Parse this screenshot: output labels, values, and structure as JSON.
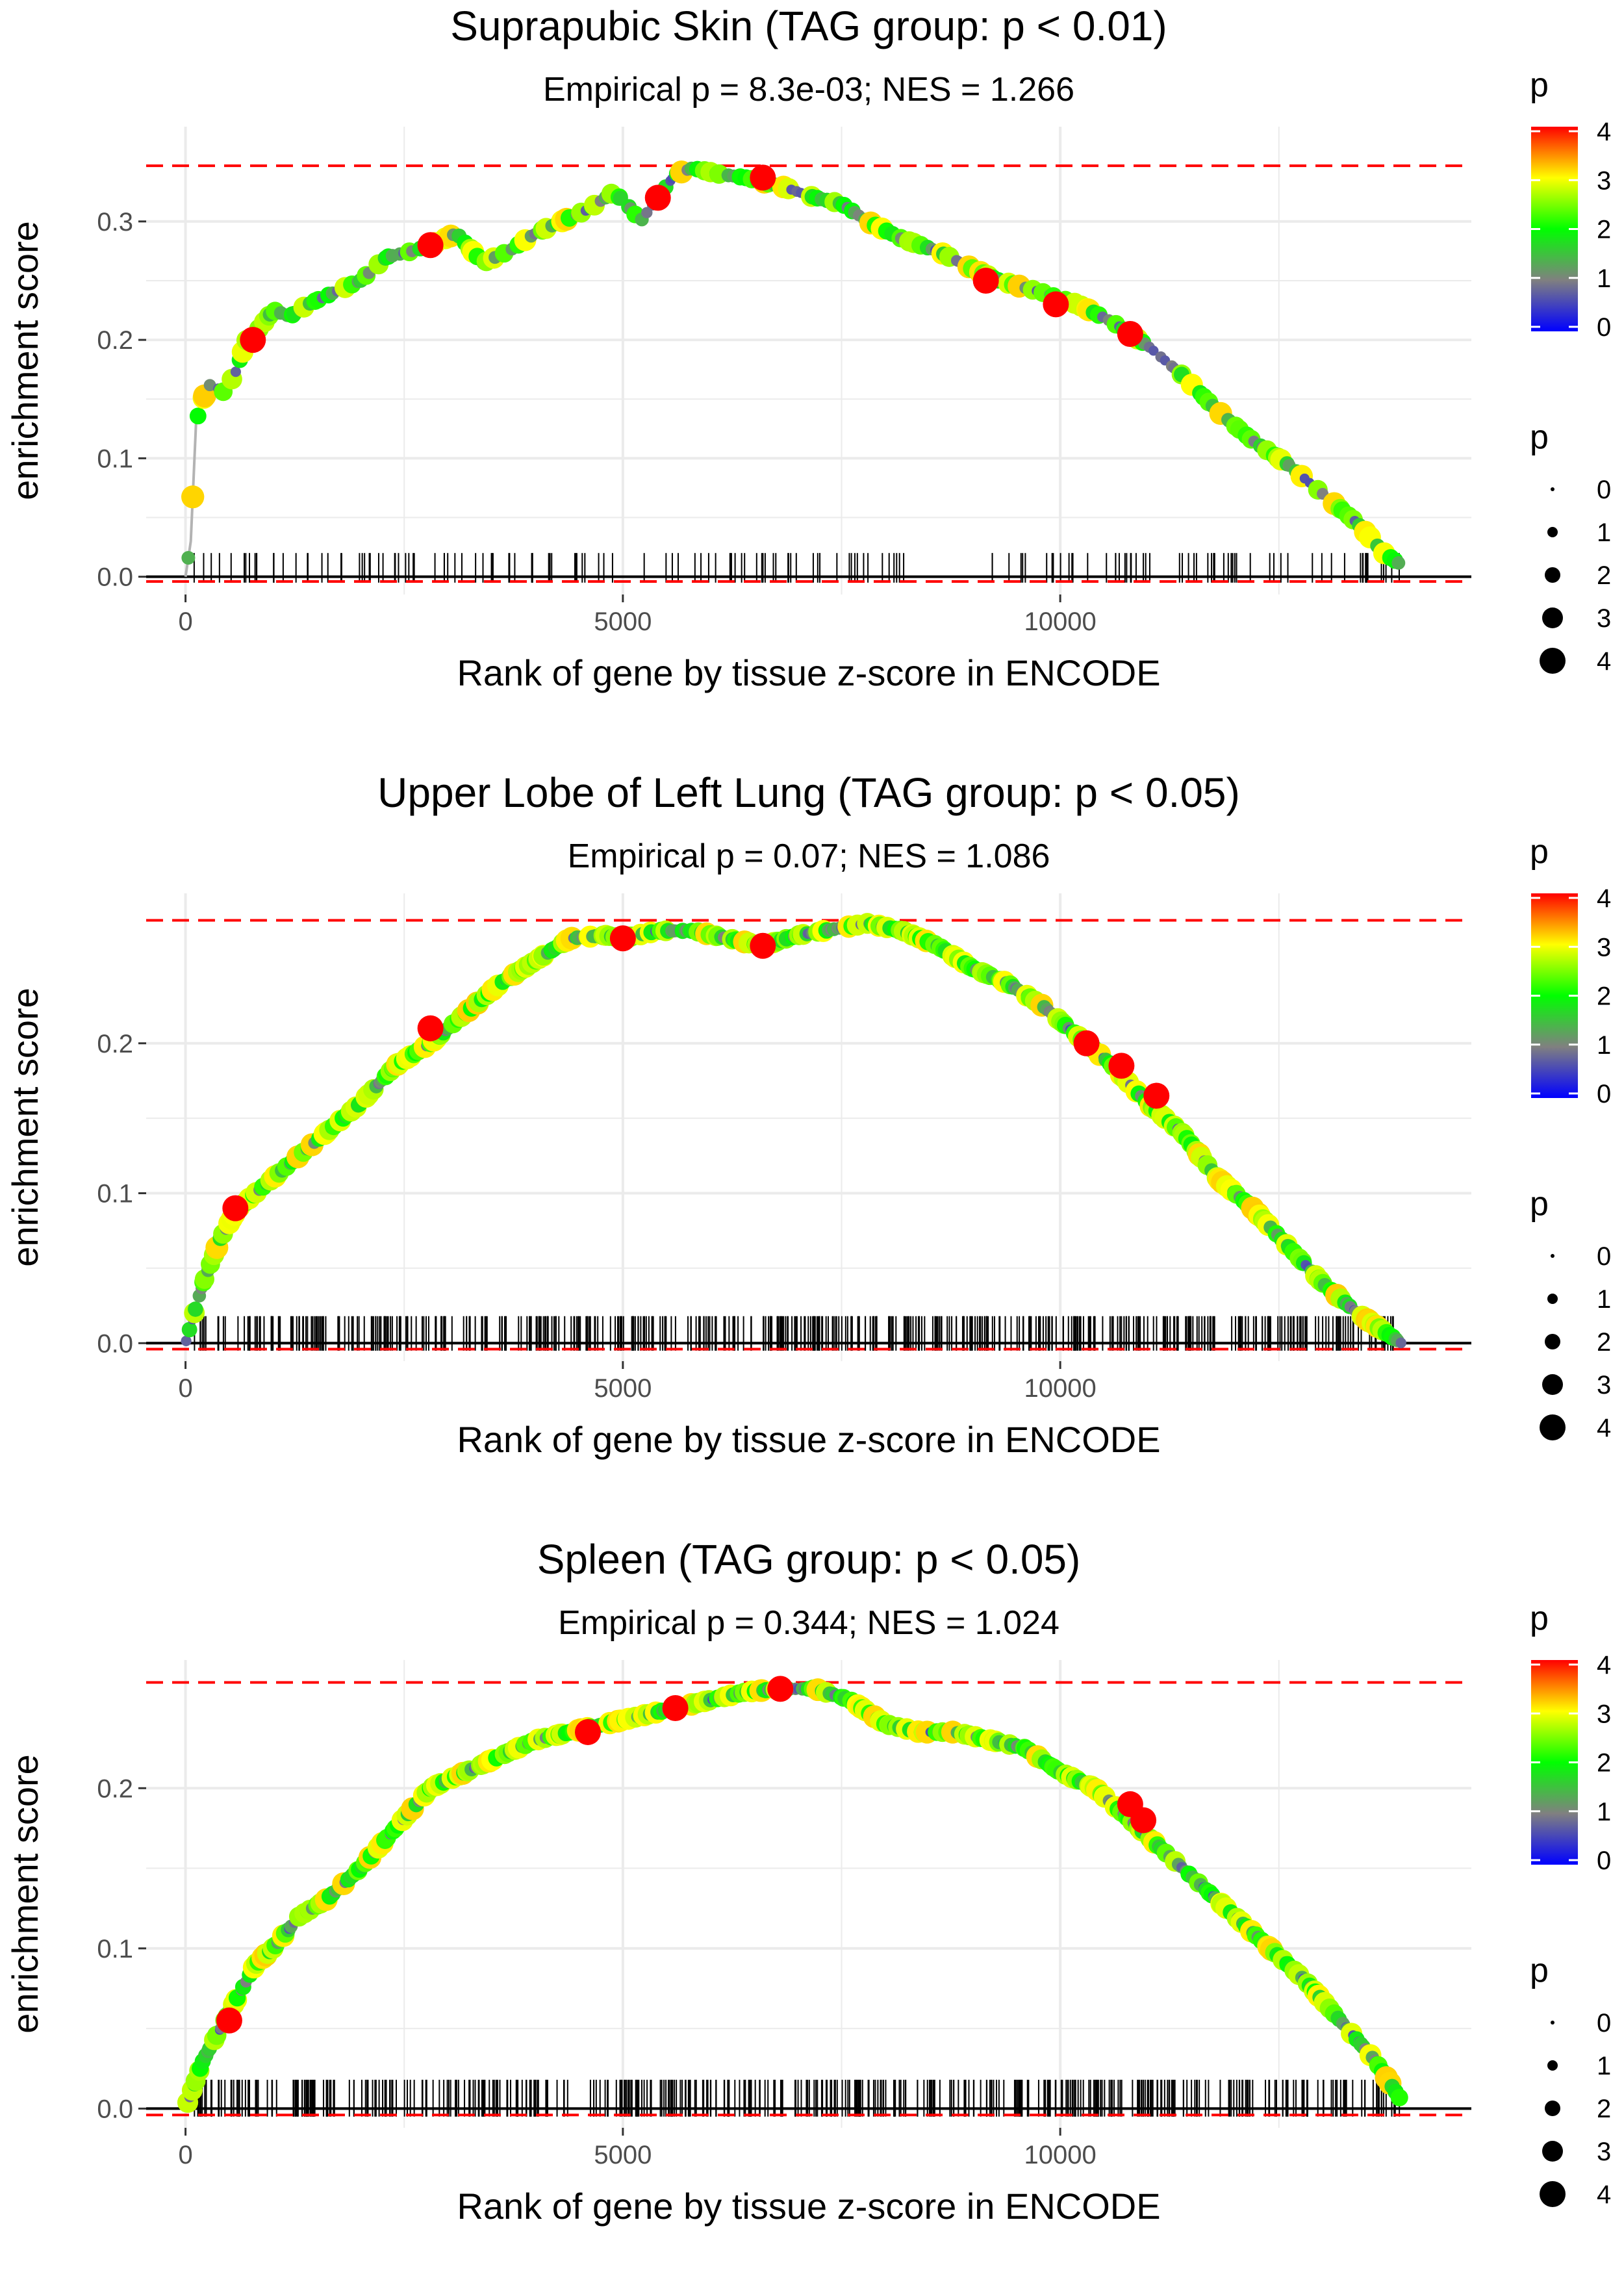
{
  "figure": {
    "legend_color_colors": [
      "#0000ff",
      "#808080",
      "#00ff00",
      "#ffff00",
      "#ff0000"
    ],
    "curve_color": "#b3b3b3",
    "threshold_color": "#ff0000",
    "grid_color": "#ebebeb",
    "hit_color": "#000000"
  },
  "chart_data": [
    {
      "type": "line",
      "title": "Suprapubic Skin (TAG group: p < 0.01)",
      "subtitle": "Empirical p = 8.3e-03; NES = 1.266",
      "xlabel": "Rank of gene by tissue z-score in ENCODE",
      "ylabel": "enrichment score",
      "xlim": [
        -450,
        14700
      ],
      "ylim": [
        -0.015,
        0.38
      ],
      "x_ticks": [
        0,
        5000,
        10000
      ],
      "x_tick_labels": [
        "0",
        "5000",
        "10000"
      ],
      "y_ticks": [
        0.0,
        0.1,
        0.2,
        0.3
      ],
      "y_tick_labels": [
        "0.0",
        "0.1",
        "0.2",
        "0.3"
      ],
      "threshold_lines": [
        0.347,
        -0.004
      ],
      "hit_band": [
        -0.005,
        0.02
      ],
      "hit_density": 170,
      "hit_blocks": [
        [
          80,
          4900
        ],
        [
          5200,
          8300
        ],
        [
          9100,
          13900
        ]
      ],
      "curve": [
        [
          0,
          0
        ],
        [
          60,
          0.03
        ],
        [
          120,
          0.13
        ],
        [
          200,
          0.15
        ],
        [
          300,
          0.165
        ],
        [
          420,
          0.155
        ],
        [
          560,
          0.17
        ],
        [
          700,
          0.2
        ],
        [
          850,
          0.21
        ],
        [
          1000,
          0.225
        ],
        [
          1200,
          0.22
        ],
        [
          1400,
          0.23
        ],
        [
          1700,
          0.24
        ],
        [
          2000,
          0.25
        ],
        [
          2300,
          0.27
        ],
        [
          2600,
          0.275
        ],
        [
          2800,
          0.28
        ],
        [
          3100,
          0.29
        ],
        [
          3400,
          0.265
        ],
        [
          3700,
          0.275
        ],
        [
          4000,
          0.29
        ],
        [
          4300,
          0.3
        ],
        [
          4600,
          0.31
        ],
        [
          4900,
          0.325
        ],
        [
          5100,
          0.31
        ],
        [
          5200,
          0.3
        ],
        [
          5400,
          0.32
        ],
        [
          5600,
          0.34
        ],
        [
          5800,
          0.345
        ],
        [
          6100,
          0.34
        ],
        [
          6400,
          0.337
        ],
        [
          6800,
          0.33
        ],
        [
          7200,
          0.32
        ],
        [
          7500,
          0.315
        ],
        [
          7800,
          0.3
        ],
        [
          8200,
          0.285
        ],
        [
          8600,
          0.275
        ],
        [
          9000,
          0.26
        ],
        [
          9300,
          0.25
        ],
        [
          9800,
          0.24
        ],
        [
          10200,
          0.23
        ],
        [
          10600,
          0.215
        ],
        [
          11000,
          0.195
        ],
        [
          11400,
          0.17
        ],
        [
          11800,
          0.14
        ],
        [
          12200,
          0.115
        ],
        [
          12600,
          0.095
        ],
        [
          13000,
          0.07
        ],
        [
          13400,
          0.045
        ],
        [
          13700,
          0.02
        ],
        [
          13900,
          0.01
        ]
      ],
      "large_points": [
        [
          770,
          0.2
        ],
        [
          2800,
          0.28
        ],
        [
          5400,
          0.32
        ],
        [
          6600,
          0.337
        ],
        [
          9150,
          0.25
        ],
        [
          9950,
          0.23
        ],
        [
          10800,
          0.205
        ]
      ],
      "legend": {
        "color_title": "p",
        "color_ticks": [
          "4",
          "3",
          "2",
          "1",
          "0"
        ],
        "size_title": "p",
        "size_labels": [
          "0",
          "1",
          "2",
          "3",
          "4"
        ]
      }
    },
    {
      "type": "line",
      "title": "Upper Lobe of Left Lung (TAG group: p < 0.05)",
      "subtitle": "Empirical p = 0.07; NES = 1.086",
      "xlabel": "Rank of gene by tissue z-score in ENCODE",
      "ylabel": "enrichment score",
      "xlim": [
        -450,
        14700
      ],
      "ylim": [
        -0.012,
        0.3
      ],
      "x_ticks": [
        0,
        5000,
        10000
      ],
      "x_tick_labels": [
        "0",
        "5000",
        "10000"
      ],
      "y_ticks": [
        0.0,
        0.1,
        0.2
      ],
      "y_tick_labels": [
        "0.0",
        "0.1",
        "0.2"
      ],
      "threshold_lines": [
        0.282,
        -0.004
      ],
      "hit_band": [
        -0.005,
        0.018
      ],
      "hit_density": 520,
      "hit_blocks": [
        [
          80,
          13900
        ]
      ],
      "curve": [
        [
          0,
          0
        ],
        [
          200,
          0.04
        ],
        [
          400,
          0.07
        ],
        [
          600,
          0.09
        ],
        [
          800,
          0.1
        ],
        [
          1000,
          0.11
        ],
        [
          1300,
          0.125
        ],
        [
          1600,
          0.14
        ],
        [
          2000,
          0.16
        ],
        [
          2400,
          0.185
        ],
        [
          2800,
          0.2
        ],
        [
          3200,
          0.22
        ],
        [
          3600,
          0.24
        ],
        [
          4000,
          0.255
        ],
        [
          4400,
          0.27
        ],
        [
          4800,
          0.272
        ],
        [
          5000,
          0.27
        ],
        [
          5400,
          0.275
        ],
        [
          5800,
          0.275
        ],
        [
          6200,
          0.27
        ],
        [
          6600,
          0.265
        ],
        [
          7000,
          0.272
        ],
        [
          7400,
          0.276
        ],
        [
          7800,
          0.28
        ],
        [
          8200,
          0.275
        ],
        [
          8600,
          0.265
        ],
        [
          9000,
          0.25
        ],
        [
          9400,
          0.24
        ],
        [
          9800,
          0.225
        ],
        [
          10200,
          0.205
        ],
        [
          10600,
          0.185
        ],
        [
          11000,
          0.16
        ],
        [
          11400,
          0.14
        ],
        [
          11800,
          0.11
        ],
        [
          12200,
          0.09
        ],
        [
          12600,
          0.065
        ],
        [
          13000,
          0.04
        ],
        [
          13400,
          0.02
        ],
        [
          13700,
          0.008
        ],
        [
          13900,
          0.0
        ]
      ],
      "large_points": [
        [
          570,
          0.09
        ],
        [
          2800,
          0.21
        ],
        [
          5000,
          0.27
        ],
        [
          6600,
          0.265
        ],
        [
          10300,
          0.2
        ],
        [
          10700,
          0.185
        ],
        [
          11100,
          0.165
        ]
      ],
      "legend": {
        "color_title": "p",
        "color_ticks": [
          "4",
          "3",
          "2",
          "1",
          "0"
        ],
        "size_title": "p",
        "size_labels": [
          "0",
          "1",
          "2",
          "3",
          "4"
        ]
      }
    },
    {
      "type": "line",
      "title": "Spleen (TAG group: p < 0.05)",
      "subtitle": "Empirical p = 0.344; NES = 1.024",
      "xlabel": "Rank of gene by tissue z-score in ENCODE",
      "ylabel": "enrichment score",
      "xlim": [
        -450,
        14700
      ],
      "ylim": [
        -0.012,
        0.28
      ],
      "x_ticks": [
        0,
        5000,
        10000
      ],
      "x_tick_labels": [
        "0",
        "5000",
        "10000"
      ],
      "y_ticks": [
        0.0,
        0.1,
        0.2
      ],
      "y_tick_labels": [
        "0.0",
        "0.1",
        "0.2"
      ],
      "threshold_lines": [
        0.266,
        -0.004
      ],
      "hit_band": [
        -0.005,
        0.018
      ],
      "hit_density": 480,
      "hit_blocks": [
        [
          80,
          13900
        ]
      ],
      "curve": [
        [
          0,
          0
        ],
        [
          200,
          0.03
        ],
        [
          400,
          0.05
        ],
        [
          600,
          0.07
        ],
        [
          800,
          0.09
        ],
        [
          1000,
          0.1
        ],
        [
          1300,
          0.12
        ],
        [
          1600,
          0.13
        ],
        [
          2000,
          0.15
        ],
        [
          2400,
          0.175
        ],
        [
          2800,
          0.2
        ],
        [
          3200,
          0.21
        ],
        [
          3600,
          0.22
        ],
        [
          4000,
          0.23
        ],
        [
          4400,
          0.235
        ],
        [
          4800,
          0.24
        ],
        [
          5200,
          0.245
        ],
        [
          5600,
          0.25
        ],
        [
          6000,
          0.255
        ],
        [
          6400,
          0.26
        ],
        [
          6800,
          0.262
        ],
        [
          7200,
          0.262
        ],
        [
          7600,
          0.255
        ],
        [
          8000,
          0.24
        ],
        [
          8400,
          0.235
        ],
        [
          8800,
          0.235
        ],
        [
          9200,
          0.23
        ],
        [
          9600,
          0.225
        ],
        [
          10000,
          0.21
        ],
        [
          10400,
          0.2
        ],
        [
          10800,
          0.18
        ],
        [
          11200,
          0.16
        ],
        [
          11600,
          0.14
        ],
        [
          12000,
          0.12
        ],
        [
          12400,
          0.1
        ],
        [
          12800,
          0.08
        ],
        [
          13200,
          0.055
        ],
        [
          13600,
          0.03
        ],
        [
          13900,
          0.005
        ]
      ],
      "large_points": [
        [
          500,
          0.055
        ],
        [
          4600,
          0.235
        ],
        [
          5600,
          0.25
        ],
        [
          6800,
          0.262
        ],
        [
          10800,
          0.19
        ],
        [
          10950,
          0.18
        ]
      ],
      "legend": {
        "color_title": "p",
        "color_ticks": [
          "4",
          "3",
          "2",
          "1",
          "0"
        ],
        "size_title": "p",
        "size_labels": [
          "0",
          "1",
          "2",
          "3",
          "4"
        ]
      }
    }
  ]
}
